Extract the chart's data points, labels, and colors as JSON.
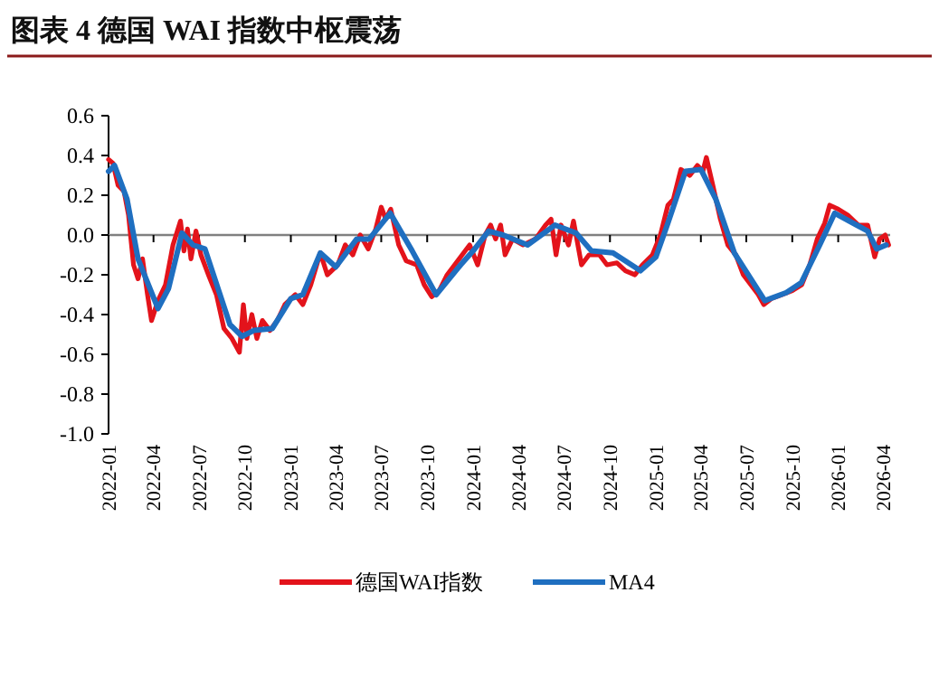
{
  "chart_data": {
    "type": "line",
    "title": "图表 4   德国 WAI 指数中枢震荡",
    "xlim": [
      "2022-01-01",
      "2026-04-15"
    ],
    "xticks": [
      "2022-01",
      "2022-04",
      "2022-07",
      "2022-10",
      "2023-01",
      "2023-04",
      "2023-07",
      "2023-10",
      "2024-01",
      "2024-04",
      "2024-07",
      "2024-10",
      "2025-01",
      "2025-04",
      "2025-07",
      "2025-10",
      "2026-01",
      "2026-04"
    ],
    "ylim": [
      -1,
      0.6
    ],
    "yticks": [
      {
        "value": 0.6,
        "label": "0.6"
      },
      {
        "value": 0.4,
        "label": "0.4"
      },
      {
        "value": 0.2,
        "label": "0.2"
      },
      {
        "value": 0,
        "label": "0.0"
      },
      {
        "value": -0.2,
        "label": "-0.2"
      },
      {
        "value": -0.4,
        "label": "-0.4"
      },
      {
        "value": -0.6,
        "label": "-0.6"
      },
      {
        "value": -0.8,
        "label": "-0.8"
      },
      {
        "value": -1,
        "label": "-1.0"
      }
    ],
    "ref_lines": [
      {
        "axis": "y",
        "value": 0,
        "color": "#808080"
      }
    ],
    "legend": "bottom",
    "line_style": "solid",
    "marker": "none",
    "series": [
      {
        "name": "德国WAI指数",
        "color": "#e3131b",
        "x": [
          "2022-01-01",
          "2022-01-10",
          "2022-01-20",
          "2022-02-01",
          "2022-02-10",
          "2022-02-20",
          "2022-03-01",
          "2022-03-10",
          "2022-03-20",
          "2022-03-28",
          "2022-04-10",
          "2022-04-25",
          "2022-05-10",
          "2022-05-25",
          "2022-06-01",
          "2022-06-08",
          "2022-06-15",
          "2022-06-25",
          "2022-07-05",
          "2022-07-20",
          "2022-08-05",
          "2022-08-20",
          "2022-09-05",
          "2022-09-20",
          "2022-09-28",
          "2022-10-05",
          "2022-10-15",
          "2022-10-25",
          "2022-11-05",
          "2022-11-20",
          "2022-12-05",
          "2022-12-20",
          "2023-01-10",
          "2023-01-25",
          "2023-02-10",
          "2023-03-01",
          "2023-03-15",
          "2023-04-05",
          "2023-04-20",
          "2023-05-05",
          "2023-05-20",
          "2023-06-05",
          "2023-06-20",
          "2023-07-01",
          "2023-07-10",
          "2023-07-20",
          "2023-08-05",
          "2023-08-20",
          "2023-09-10",
          "2023-09-25",
          "2023-10-10",
          "2023-10-25",
          "2023-11-10",
          "2023-11-25",
          "2023-12-10",
          "2023-12-25",
          "2024-01-10",
          "2024-01-25",
          "2024-02-05",
          "2024-02-15",
          "2024-02-25",
          "2024-03-05",
          "2024-03-20",
          "2024-04-10",
          "2024-05-05",
          "2024-05-25",
          "2024-06-05",
          "2024-06-15",
          "2024-06-25",
          "2024-07-10",
          "2024-07-20",
          "2024-08-05",
          "2024-08-20",
          "2024-09-10",
          "2024-09-25",
          "2024-10-15",
          "2024-11-01",
          "2024-11-20",
          "2024-12-05",
          "2024-12-25",
          "2025-01-10",
          "2025-01-25",
          "2025-02-05",
          "2025-02-20",
          "2025-03-10",
          "2025-03-25",
          "2025-04-05",
          "2025-04-12",
          "2025-04-25",
          "2025-05-10",
          "2025-05-25",
          "2025-06-10",
          "2025-06-25",
          "2025-07-10",
          "2025-07-25",
          "2025-08-05",
          "2025-08-20",
          "2025-09-10",
          "2025-10-01",
          "2025-10-20",
          "2025-11-05",
          "2025-11-20",
          "2025-12-05",
          "2025-12-15",
          "2026-01-01",
          "2026-01-20",
          "2026-02-10",
          "2026-03-01",
          "2026-03-15",
          "2026-03-25",
          "2026-04-05",
          "2026-04-12"
        ],
        "values": [
          0.38,
          0.36,
          0.25,
          0.22,
          0.1,
          -0.15,
          -0.22,
          -0.12,
          -0.3,
          -0.43,
          -0.33,
          -0.25,
          -0.05,
          0.07,
          -0.08,
          0.03,
          -0.12,
          0.02,
          -0.1,
          -0.2,
          -0.3,
          -0.47,
          -0.52,
          -0.59,
          -0.35,
          -0.52,
          -0.4,
          -0.52,
          -0.43,
          -0.48,
          -0.43,
          -0.35,
          -0.3,
          -0.35,
          -0.25,
          -0.09,
          -0.2,
          -0.15,
          -0.05,
          -0.1,
          0.0,
          -0.07,
          0.03,
          0.14,
          0.08,
          0.13,
          -0.05,
          -0.13,
          -0.15,
          -0.25,
          -0.31,
          -0.28,
          -0.2,
          -0.15,
          -0.1,
          -0.05,
          -0.15,
          0.0,
          0.05,
          -0.02,
          0.05,
          -0.1,
          -0.02,
          -0.05,
          -0.02,
          0.05,
          0.08,
          -0.1,
          0.05,
          -0.05,
          0.07,
          -0.15,
          -0.1,
          -0.1,
          -0.15,
          -0.14,
          -0.18,
          -0.2,
          -0.15,
          -0.1,
          0.0,
          0.15,
          0.18,
          0.33,
          0.3,
          0.35,
          0.32,
          0.39,
          0.25,
          0.08,
          -0.05,
          -0.1,
          -0.2,
          -0.25,
          -0.3,
          -0.35,
          -0.32,
          -0.3,
          -0.28,
          -0.25,
          -0.15,
          -0.02,
          0.06,
          0.15,
          0.13,
          0.1,
          0.05,
          0.05,
          -0.11,
          -0.02,
          0.0,
          -0.05
        ]
      },
      {
        "name": "MA4",
        "color": "#1f6fc0",
        "x": [
          "2022-01-01",
          "2022-01-13",
          "2022-02-07",
          "2022-03-01",
          "2022-04-10",
          "2022-05-01",
          "2022-05-28",
          "2022-06-19",
          "2022-07-13",
          "2022-09-01",
          "2022-09-25",
          "2022-10-19",
          "2022-11-25",
          "2023-01-01",
          "2023-01-25",
          "2023-03-01",
          "2023-04-01",
          "2023-05-13",
          "2023-06-07",
          "2023-07-19",
          "2023-09-01",
          "2023-10-19",
          "2023-12-07",
          "2024-01-01",
          "2024-02-01",
          "2024-03-01",
          "2024-04-19",
          "2024-06-13",
          "2024-07-25",
          "2024-08-25",
          "2024-10-07",
          "2024-12-01",
          "2025-01-01",
          "2025-01-25",
          "2025-03-01",
          "2025-04-01",
          "2025-05-01",
          "2025-06-07",
          "2025-08-07",
          "2025-09-19",
          "2025-10-19",
          "2025-11-25",
          "2025-12-25",
          "2026-02-07",
          "2026-03-01",
          "2026-03-19",
          "2026-04-07"
        ],
        "values": [
          0.32,
          0.35,
          0.18,
          -0.12,
          -0.37,
          -0.27,
          0.01,
          -0.05,
          -0.07,
          -0.45,
          -0.51,
          -0.48,
          -0.47,
          -0.32,
          -0.3,
          -0.09,
          -0.16,
          -0.02,
          -0.02,
          0.11,
          -0.08,
          -0.3,
          -0.15,
          -0.08,
          0.02,
          0,
          -0.05,
          0.05,
          0.01,
          -0.08,
          -0.09,
          -0.18,
          -0.11,
          0.06,
          0.32,
          0.33,
          0.18,
          -0.09,
          -0.33,
          -0.29,
          -0.24,
          -0.05,
          0.11,
          0.05,
          0.02,
          -0.07,
          -0.05
        ]
      }
    ]
  }
}
